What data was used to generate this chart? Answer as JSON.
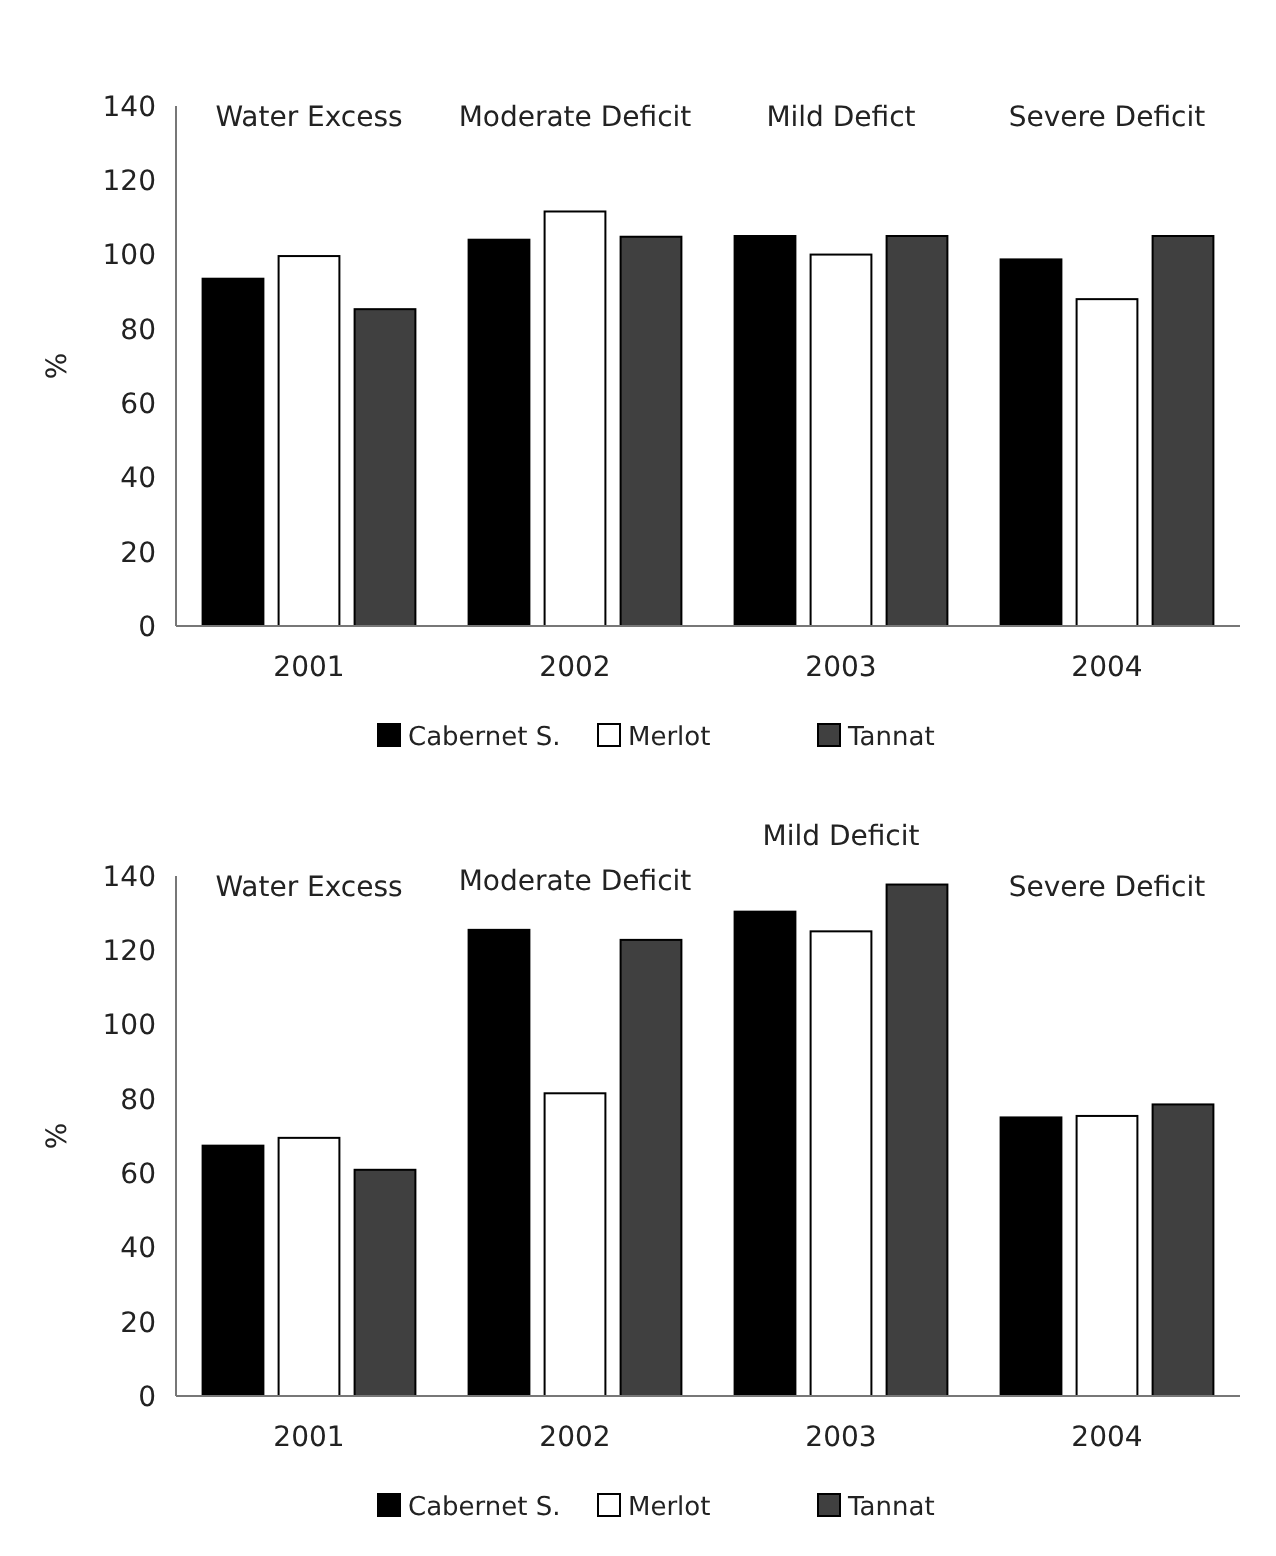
{
  "chart_data": [
    {
      "type": "bar",
      "ylabel": "%",
      "categories": [
        "2001",
        "2002",
        "2003",
        "2004"
      ],
      "ylim": [
        0,
        140
      ],
      "yticks": [
        0,
        20,
        40,
        60,
        80,
        100,
        120,
        140
      ],
      "grid": false,
      "legend": "bottom",
      "series": [
        {
          "name": "Cabernet S.",
          "color": "#000000",
          "values": [
            93.5,
            104,
            105,
            98.7
          ]
        },
        {
          "name": "Merlot",
          "color": "#ffffff",
          "values": [
            99.6,
            111.6,
            100,
            88
          ]
        },
        {
          "name": "Tannat",
          "color": "#404040",
          "values": [
            85.3,
            104.8,
            105,
            105
          ]
        }
      ],
      "annotations": [
        "Water Excess",
        "Moderate Deficit",
        "Mild Defict",
        "Severe Deficit"
      ]
    },
    {
      "type": "bar",
      "ylabel": "%",
      "categories": [
        "2001",
        "2002",
        "2003",
        "2004"
      ],
      "ylim": [
        0,
        140
      ],
      "yticks": [
        0,
        20,
        40,
        60,
        80,
        100,
        120,
        140
      ],
      "grid": false,
      "legend": "bottom",
      "series": [
        {
          "name": "Cabernet S.",
          "color": "#000000",
          "values": [
            67.4,
            125.5,
            130.4,
            75
          ]
        },
        {
          "name": "Merlot",
          "color": "#ffffff",
          "values": [
            69.5,
            81.5,
            125.1,
            75.4
          ]
        },
        {
          "name": "Tannat",
          "color": "#404040",
          "values": [
            60.9,
            122.8,
            137.7,
            78.5
          ]
        }
      ],
      "annotations": [
        "Water Excess",
        "Moderate Deficit",
        "Mild Deficit",
        "Severe Deficit"
      ]
    }
  ]
}
